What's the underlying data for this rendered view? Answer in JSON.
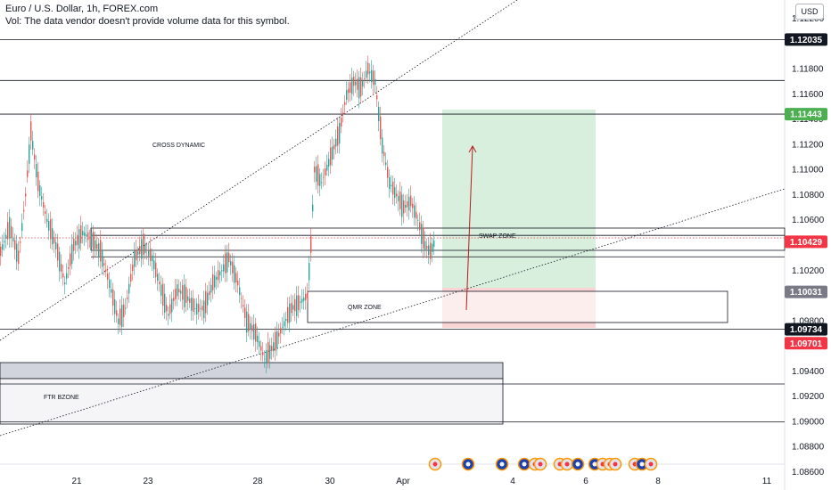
{
  "header": {
    "title": "Euro / U.S. Dollar, 1h, FOREX.com",
    "volume_note": "Vol: The data vendor doesn't provide volume data for this symbol."
  },
  "currency": "USD",
  "chart_data": {
    "type": "candlestick",
    "symbol": "EURUSD",
    "timeframe": "1h",
    "ylim": [
      1.0855,
      1.1225
    ],
    "y_ticks": [
      "1.12200",
      "1.11800",
      "1.11600",
      "1.11400",
      "1.11200",
      "1.11000",
      "1.10800",
      "1.10600",
      "1.10200",
      "1.09800",
      "1.09400",
      "1.09200",
      "1.09000",
      "1.08800",
      "1.08600"
    ],
    "x_ticks": [
      "21",
      "23",
      "28",
      "30",
      "Apr",
      "4",
      "6",
      "8",
      "11"
    ],
    "price_tags": [
      {
        "value": "1.12035",
        "color": "#131722"
      },
      {
        "value": "1.11443",
        "color": "#4caf50"
      },
      {
        "value": "1.10429",
        "color": "#f23645"
      },
      {
        "value": "1.10031",
        "color": "#787b86"
      },
      {
        "value": "1.09734",
        "color": "#131722"
      },
      {
        "value": "1.09701",
        "color": "#f23645"
      }
    ],
    "horizontal_levels": [
      1.12035,
      1.1171,
      1.11443,
      1.1048,
      1.1031,
      1.09734,
      1.093,
      1.09
    ],
    "zones": [
      {
        "label": "CROSS DYNAMIC"
      },
      {
        "label": "SWAP ZONE"
      },
      {
        "label": "QMR ZONE"
      },
      {
        "label": "FTR BZONE"
      }
    ],
    "position": {
      "direction": "long",
      "entry": 1.10031,
      "target": 1.11443,
      "stop": 1.09701
    },
    "colors": {
      "up": "#26a69a",
      "down": "#ef5350",
      "profit": "#d4edda",
      "loss": "#f9d0d0"
    }
  }
}
